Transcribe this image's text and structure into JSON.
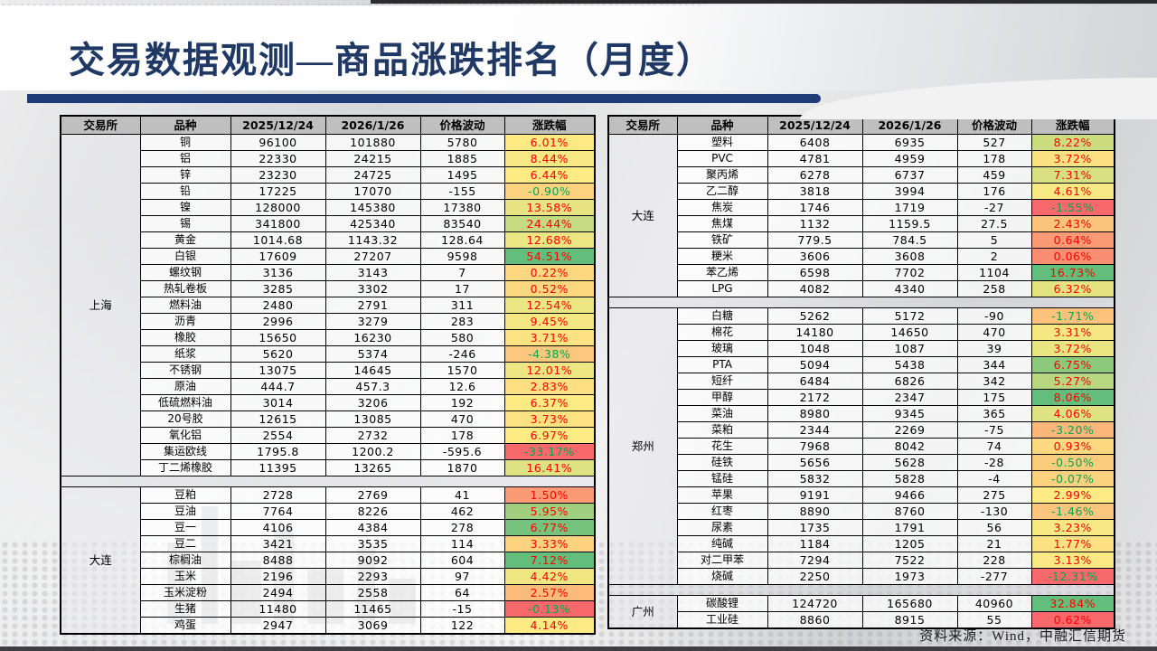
{
  "page": {
    "title": "交易数据观测—商品涨跌排名（月度）",
    "source_note": "资料来源：Wind，中融汇信期货"
  },
  "colors": {
    "title_text": "#1F3864",
    "accent_bar": "#1F3C78",
    "header_bg": "#BFBFBF",
    "scale_min": "#F8696B",
    "scale_mid": "#FFEB84",
    "scale_max": "#63BE7B",
    "positive_text": "#FF0000",
    "negative_text": "#00A651"
  },
  "columns": [
    "交易所",
    "品种",
    "2025/12/24",
    "2026/1/26",
    "价格波动",
    "涨跌幅"
  ],
  "tables": [
    {
      "name": "left",
      "sections": [
        {
          "exchange": "上海",
          "rows": [
            [
              "铜",
              "96100",
              "101880",
              "5780",
              "6.01%"
            ],
            [
              "铝",
              "22330",
              "24215",
              "1885",
              "8.44%"
            ],
            [
              "锌",
              "23230",
              "24725",
              "1495",
              "6.44%"
            ],
            [
              "铅",
              "17225",
              "17070",
              "-155",
              "-0.90%"
            ],
            [
              "镍",
              "128000",
              "145380",
              "17380",
              "13.58%"
            ],
            [
              "锡",
              "341800",
              "425340",
              "83540",
              "24.44%"
            ],
            [
              "黄金",
              "1014.68",
              "1143.32",
              "128.64",
              "12.68%"
            ],
            [
              "白银",
              "17609",
              "27207",
              "9598",
              "54.51%"
            ],
            [
              "螺纹钢",
              "3136",
              "3143",
              "7",
              "0.22%"
            ],
            [
              "热轧卷板",
              "3285",
              "3302",
              "17",
              "0.52%"
            ],
            [
              "燃料油",
              "2480",
              "2791",
              "311",
              "12.54%"
            ],
            [
              "沥青",
              "2996",
              "3279",
              "283",
              "9.45%"
            ],
            [
              "橡胶",
              "15650",
              "16230",
              "580",
              "3.71%"
            ],
            [
              "纸浆",
              "5620",
              "5374",
              "-246",
              "-4.38%"
            ],
            [
              "不锈钢",
              "13075",
              "14645",
              "1570",
              "12.01%"
            ],
            [
              "原油",
              "444.7",
              "457.3",
              "12.6",
              "2.83%"
            ],
            [
              "低硫燃料油",
              "3014",
              "3206",
              "192",
              "6.37%"
            ],
            [
              "20号胶",
              "12615",
              "13085",
              "470",
              "3.73%"
            ],
            [
              "氧化铝",
              "2554",
              "2732",
              "178",
              "6.97%"
            ],
            [
              "集运欧线",
              "1795.8",
              "1200.2",
              "-595.6",
              "-33.17%"
            ],
            [
              "丁二烯橡胶",
              "11395",
              "13265",
              "1870",
              "16.41%"
            ]
          ]
        },
        {
          "exchange": "大连",
          "rows": [
            [
              "豆粕",
              "2728",
              "2769",
              "41",
              "1.50%"
            ],
            [
              "豆油",
              "7764",
              "8226",
              "462",
              "5.95%"
            ],
            [
              "豆一",
              "4106",
              "4384",
              "278",
              "6.77%"
            ],
            [
              "豆二",
              "3421",
              "3535",
              "114",
              "3.33%"
            ],
            [
              "棕榈油",
              "8488",
              "9092",
              "604",
              "7.12%"
            ],
            [
              "玉米",
              "2196",
              "2293",
              "97",
              "4.42%"
            ],
            [
              "玉米淀粉",
              "2494",
              "2558",
              "64",
              "2.57%"
            ],
            [
              "生猪",
              "11480",
              "11465",
              "-15",
              "-0.13%"
            ],
            [
              "鸡蛋",
              "2947",
              "3069",
              "122",
              "4.14%"
            ]
          ]
        }
      ]
    },
    {
      "name": "right",
      "sections": [
        {
          "exchange": "大连",
          "rows": [
            [
              "塑料",
              "6408",
              "6935",
              "527",
              "8.22%"
            ],
            [
              "PVC",
              "4781",
              "4959",
              "178",
              "3.72%"
            ],
            [
              "聚丙烯",
              "6278",
              "6737",
              "459",
              "7.31%"
            ],
            [
              "乙二醇",
              "3818",
              "3994",
              "176",
              "4.61%"
            ],
            [
              "焦炭",
              "1746",
              "1719",
              "-27",
              "-1.55%"
            ],
            [
              "焦煤",
              "1132",
              "1159.5",
              "27.5",
              "2.43%"
            ],
            [
              "铁矿",
              "779.5",
              "784.5",
              "5",
              "0.64%"
            ],
            [
              "粳米",
              "3606",
              "3608",
              "2",
              "0.06%"
            ],
            [
              "苯乙烯",
              "6598",
              "7702",
              "1104",
              "16.73%"
            ],
            [
              "LPG",
              "4082",
              "4340",
              "258",
              "6.32%"
            ]
          ]
        },
        {
          "exchange": "郑州",
          "rows": [
            [
              "白糖",
              "5262",
              "5172",
              "-90",
              "-1.71%"
            ],
            [
              "棉花",
              "14180",
              "14650",
              "470",
              "3.31%"
            ],
            [
              "玻璃",
              "1048",
              "1087",
              "39",
              "3.72%"
            ],
            [
              "PTA",
              "5094",
              "5438",
              "344",
              "6.75%"
            ],
            [
              "短纤",
              "6484",
              "6826",
              "342",
              "5.27%"
            ],
            [
              "甲醇",
              "2172",
              "2347",
              "175",
              "8.06%"
            ],
            [
              "菜油",
              "8980",
              "9345",
              "365",
              "4.06%"
            ],
            [
              "菜粕",
              "2344",
              "2269",
              "-75",
              "-3.20%"
            ],
            [
              "花生",
              "7968",
              "8042",
              "74",
              "0.93%"
            ],
            [
              "硅铁",
              "5656",
              "5628",
              "-28",
              "-0.50%"
            ],
            [
              "锰硅",
              "5832",
              "5828",
              "-4",
              "-0.07%"
            ],
            [
              "苹果",
              "9191",
              "9466",
              "275",
              "2.99%"
            ],
            [
              "红枣",
              "8890",
              "8760",
              "-130",
              "-1.46%"
            ],
            [
              "尿素",
              "1735",
              "1791",
              "56",
              "3.23%"
            ],
            [
              "纯碱",
              "1184",
              "1205",
              "21",
              "1.77%"
            ],
            [
              "对二甲苯",
              "7294",
              "7522",
              "228",
              "3.13%"
            ],
            [
              "烧碱",
              "2250",
              "1973",
              "-277",
              "-12.31%"
            ]
          ]
        },
        {
          "exchange": "广州",
          "rows": [
            [
              "碳酸锂",
              "124720",
              "165680",
              "40960",
              "32.84%"
            ],
            [
              "工业硅",
              "8860",
              "8915",
              "55",
              "0.62%"
            ]
          ]
        }
      ]
    }
  ]
}
